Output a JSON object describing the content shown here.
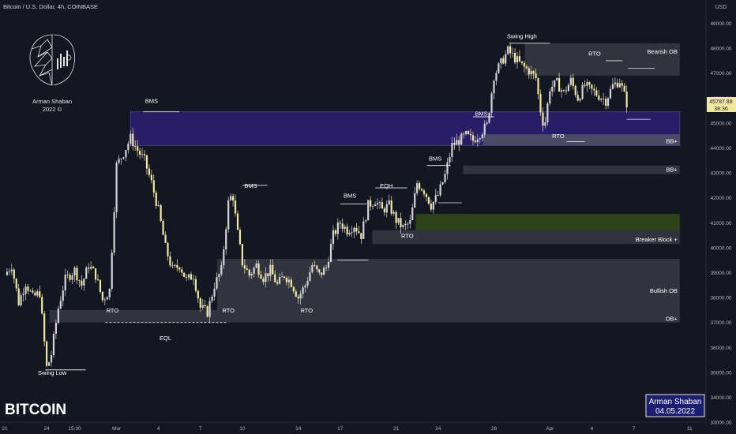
{
  "header": {
    "title": "Bitcoin / U.S. Dollar, 4h, COINBASE",
    "currency": "USD"
  },
  "logo": {
    "name": "Arman Shaban",
    "year": "2022 ©"
  },
  "watermark": "BITCOIN",
  "signature": {
    "name": "Arman Shaban",
    "date": "04.05.2022"
  },
  "price_label": {
    "value": "45787.88",
    "countdown": "38:36"
  },
  "colors": {
    "background": "#131722",
    "candle_up": "#d6d3d6",
    "candle_down": "#f1e9a0",
    "zone_gray": "#4a4c56",
    "zone_purple": "#2a1e6b",
    "zone_green": "#2c4617",
    "line": "#e5e5e5"
  },
  "chart_data": {
    "type": "candlestick",
    "y_axis": {
      "min": 33000,
      "max": 49500,
      "ticks": [
        {
          "value": 49000,
          "label": "49000.00"
        },
        {
          "value": 48000,
          "label": "48000.00"
        },
        {
          "value": 47000,
          "label": "47000.00"
        },
        {
          "value": 46000,
          "label": "46000.00"
        },
        {
          "value": 45000,
          "label": "45000.00"
        },
        {
          "value": 44000,
          "label": "44000.00"
        },
        {
          "value": 43000,
          "label": "43000.00"
        },
        {
          "value": 42000,
          "label": "42000.00"
        },
        {
          "value": 41000,
          "label": "41000.00"
        },
        {
          "value": 40000,
          "label": "40000.00"
        },
        {
          "value": 39000,
          "label": "39000.00"
        },
        {
          "value": 38000,
          "label": "38000.00"
        },
        {
          "value": 37000,
          "label": "37000.00"
        },
        {
          "value": 36000,
          "label": "36000.00"
        },
        {
          "value": 35000,
          "label": "35000.00"
        },
        {
          "value": 34000,
          "label": "34000.00"
        },
        {
          "value": 33000,
          "label": "33000.00"
        }
      ]
    },
    "x_axis": {
      "ticks": [
        {
          "label": "21",
          "day": 0
        },
        {
          "label": "24",
          "day": 3
        },
        {
          "label": "15:30",
          "day": 5
        },
        {
          "label": "Mar",
          "day": 8
        },
        {
          "label": "4",
          "day": 11
        },
        {
          "label": "7",
          "day": 14
        },
        {
          "label": "10",
          "day": 17
        },
        {
          "label": "14",
          "day": 21
        },
        {
          "label": "17",
          "day": 24
        },
        {
          "label": "21",
          "day": 28
        },
        {
          "label": "24",
          "day": 31
        },
        {
          "label": "28",
          "day": 35
        },
        {
          "label": "Apr",
          "day": 39
        },
        {
          "label": "4",
          "day": 42
        },
        {
          "label": "7",
          "day": 45
        },
        {
          "label": "11",
          "day": 49
        }
      ]
    },
    "price_path": [
      {
        "day": 0.0,
        "price": 38900
      },
      {
        "day": 0.5,
        "price": 39300
      },
      {
        "day": 1.0,
        "price": 37800
      },
      {
        "day": 1.5,
        "price": 38600
      },
      {
        "day": 2.0,
        "price": 38000
      },
      {
        "day": 2.5,
        "price": 38200
      },
      {
        "day": 3.0,
        "price": 35200
      },
      {
        "day": 3.3,
        "price": 35600
      },
      {
        "day": 3.8,
        "price": 37500
      },
      {
        "day": 4.3,
        "price": 38700
      },
      {
        "day": 5.0,
        "price": 39100
      },
      {
        "day": 5.5,
        "price": 38500
      },
      {
        "day": 6.0,
        "price": 39300
      },
      {
        "day": 6.5,
        "price": 38900
      },
      {
        "day": 7.0,
        "price": 37900
      },
      {
        "day": 7.5,
        "price": 38300
      },
      {
        "day": 8.0,
        "price": 43300
      },
      {
        "day": 8.5,
        "price": 43800
      },
      {
        "day": 9.0,
        "price": 44400
      },
      {
        "day": 9.5,
        "price": 43900
      },
      {
        "day": 10.0,
        "price": 43500
      },
      {
        "day": 10.5,
        "price": 42600
      },
      {
        "day": 11.0,
        "price": 41500
      },
      {
        "day": 11.5,
        "price": 40000
      },
      {
        "day": 12.0,
        "price": 39100
      },
      {
        "day": 12.5,
        "price": 39300
      },
      {
        "day": 13.0,
        "price": 38700
      },
      {
        "day": 13.5,
        "price": 38900
      },
      {
        "day": 14.0,
        "price": 37600
      },
      {
        "day": 14.5,
        "price": 37400
      },
      {
        "day": 15.0,
        "price": 38500
      },
      {
        "day": 15.5,
        "price": 39100
      },
      {
        "day": 16.0,
        "price": 41800
      },
      {
        "day": 16.3,
        "price": 42200
      },
      {
        "day": 16.6,
        "price": 40800
      },
      {
        "day": 17.0,
        "price": 39400
      },
      {
        "day": 17.5,
        "price": 38900
      },
      {
        "day": 18.0,
        "price": 39300
      },
      {
        "day": 18.5,
        "price": 38800
      },
      {
        "day": 19.0,
        "price": 39100
      },
      {
        "day": 19.5,
        "price": 38500
      },
      {
        "day": 20.0,
        "price": 38900
      },
      {
        "day": 20.5,
        "price": 38600
      },
      {
        "day": 21.0,
        "price": 38000
      },
      {
        "day": 21.5,
        "price": 38500
      },
      {
        "day": 22.0,
        "price": 39300
      },
      {
        "day": 22.5,
        "price": 38900
      },
      {
        "day": 23.0,
        "price": 39200
      },
      {
        "day": 23.5,
        "price": 40500
      },
      {
        "day": 24.0,
        "price": 41000
      },
      {
        "day": 24.5,
        "price": 40700
      },
      {
        "day": 25.0,
        "price": 40900
      },
      {
        "day": 25.5,
        "price": 40500
      },
      {
        "day": 26.0,
        "price": 41700
      },
      {
        "day": 26.5,
        "price": 41900
      },
      {
        "day": 27.0,
        "price": 41500
      },
      {
        "day": 27.5,
        "price": 41700
      },
      {
        "day": 28.0,
        "price": 41100
      },
      {
        "day": 28.5,
        "price": 40800
      },
      {
        "day": 29.0,
        "price": 41000
      },
      {
        "day": 29.5,
        "price": 42600
      },
      {
        "day": 30.0,
        "price": 42300
      },
      {
        "day": 30.5,
        "price": 41700
      },
      {
        "day": 31.0,
        "price": 42100
      },
      {
        "day": 31.5,
        "price": 42900
      },
      {
        "day": 32.0,
        "price": 44100
      },
      {
        "day": 32.5,
        "price": 44300
      },
      {
        "day": 33.0,
        "price": 44500
      },
      {
        "day": 33.5,
        "price": 44300
      },
      {
        "day": 34.0,
        "price": 44600
      },
      {
        "day": 34.5,
        "price": 44900
      },
      {
        "day": 35.0,
        "price": 46900
      },
      {
        "day": 35.5,
        "price": 47400
      },
      {
        "day": 36.0,
        "price": 47900
      },
      {
        "day": 36.5,
        "price": 47600
      },
      {
        "day": 37.0,
        "price": 47300
      },
      {
        "day": 37.5,
        "price": 47100
      },
      {
        "day": 38.0,
        "price": 46800
      },
      {
        "day": 38.3,
        "price": 45600
      },
      {
        "day": 38.6,
        "price": 44800
      },
      {
        "day": 39.0,
        "price": 46400
      },
      {
        "day": 39.5,
        "price": 46600
      },
      {
        "day": 40.0,
        "price": 46200
      },
      {
        "day": 40.5,
        "price": 46700
      },
      {
        "day": 41.0,
        "price": 46000
      },
      {
        "day": 41.5,
        "price": 46500
      },
      {
        "day": 42.0,
        "price": 46300
      },
      {
        "day": 42.5,
        "price": 46100
      },
      {
        "day": 43.0,
        "price": 45900
      },
      {
        "day": 43.5,
        "price": 46500
      },
      {
        "day": 44.0,
        "price": 46700
      },
      {
        "day": 44.5,
        "price": 45800
      }
    ],
    "zones": [
      {
        "name": "bms-top-zone",
        "type": "purple",
        "from_day": 9,
        "to_day": 48.3,
        "top": 45450,
        "bottom": 44100
      },
      {
        "name": "bb-plus-zone-1",
        "type": "gray-light",
        "from_day": 34.2,
        "to_day": 48.3,
        "top": 44550,
        "bottom": 44100,
        "label": "BB+"
      },
      {
        "name": "bearish-ob-zone",
        "type": "gray",
        "from_day": 37.2,
        "to_day": 48.3,
        "top": 48200,
        "bottom": 46900,
        "label": "Bearish OB"
      },
      {
        "name": "bb-plus-zone-2",
        "type": "gray",
        "from_day": 32.8,
        "to_day": 48.3,
        "top": 43300,
        "bottom": 42950,
        "label": "BB+"
      },
      {
        "name": "green-zone",
        "type": "green",
        "from_day": 29.4,
        "to_day": 48.3,
        "top": 41350,
        "bottom": 40700
      },
      {
        "name": "breaker-block-zone",
        "type": "gray",
        "from_day": 26.3,
        "to_day": 48.3,
        "top": 40700,
        "bottom": 40150,
        "label": "Breaker Block +"
      },
      {
        "name": "bullish-ob-zone",
        "type": "gray",
        "from_day": 15.2,
        "to_day": 48.3,
        "top": 39550,
        "bottom": 37500,
        "label": "Bullish OB"
      },
      {
        "name": "ob-plus-zone",
        "type": "gray",
        "from_day": 3.2,
        "to_day": 48.3,
        "top": 37500,
        "bottom": 37000,
        "label": "OB+"
      }
    ],
    "annotations": [
      {
        "text": "Swing Low",
        "day": 3.4,
        "price": 34900,
        "line_to_day": 5.8,
        "line_price": 35100
      },
      {
        "text": "BMS",
        "day": 10.5,
        "price": 45800,
        "line_from_day": 9.9,
        "line_to_day": 12.5,
        "line_price": 45450
      },
      {
        "text": "BMS",
        "day": 17.6,
        "price": 42400,
        "line_from_day": 17.0,
        "line_to_day": 18.8,
        "line_price": 42500
      },
      {
        "text": "BMS",
        "day": 24.7,
        "price": 42000,
        "line_from_day": 24.0,
        "line_to_day": 25.9,
        "line_price": 41750
      },
      {
        "text": "EQH",
        "day": 27.3,
        "price": 42400,
        "line_from_day": 26.5,
        "line_to_day": 28.8,
        "line_price": 42400
      },
      {
        "text": "BMS",
        "day": 30.8,
        "price": 43500,
        "line_from_day": 30.2,
        "line_to_day": 31.9,
        "line_price": 43300
      },
      {
        "text": "BMS",
        "day": 34.1,
        "price": 45300,
        "line_from_day": 33.5,
        "line_to_day": 35.0,
        "line_price": 45250
      },
      {
        "text": "Swing High",
        "day": 37.0,
        "price": 48400,
        "line_from_day": 36.1,
        "line_to_day": 39.0,
        "line_price": 48200
      },
      {
        "text": "RTO",
        "day": 7.7,
        "price": 37400
      },
      {
        "text": "RTO",
        "day": 16.0,
        "price": 37400
      },
      {
        "text": "RTO",
        "day": 21.6,
        "price": 37400
      },
      {
        "text": "RTO",
        "day": 28.8,
        "price": 40400
      },
      {
        "text": "RTO",
        "day": 39.6,
        "price": 44400,
        "line_from_day": 40.2,
        "line_to_day": 41.5,
        "line_price": 44250
      },
      {
        "text": "RTO",
        "day": 42.2,
        "price": 47700,
        "line_from_day": 43.0,
        "line_to_day": 44.2,
        "line_price": 47500
      },
      {
        "text": "EQL",
        "day": 11.5,
        "price": 36300
      }
    ],
    "extra_lines": [
      {
        "name": "eql-line",
        "from_day": 7.2,
        "to_day": 15.9,
        "price": 37000,
        "dashed": true
      },
      {
        "name": "rto-line-a",
        "from_day": 23.8,
        "to_day": 26.0,
        "price": 39500
      },
      {
        "name": "rto-line-b",
        "from_day": 31.0,
        "to_day": 32.7,
        "price": 41800
      },
      {
        "name": "rto-line-c",
        "from_day": 44.5,
        "to_day": 46.2,
        "price": 45150
      },
      {
        "name": "bearish-ob-line",
        "from_day": 44.6,
        "to_day": 46.5,
        "price": 47200
      }
    ]
  }
}
